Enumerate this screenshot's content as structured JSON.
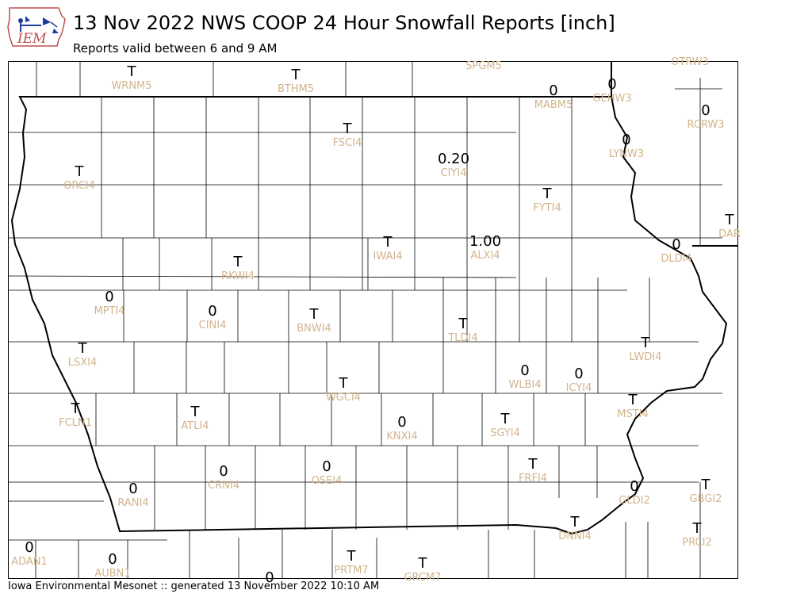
{
  "logo": {
    "text": "IEM"
  },
  "header": {
    "title": "13 Nov 2022 NWS COOP 24 Hour Snowfall Reports [inch]",
    "subtitle": "Reports valid between 6 and 9 AM"
  },
  "footer": "Iowa Environmental Mesonet :: generated 13 November 2022 10:10 AM",
  "colors": {
    "station_label": "#d2b48c",
    "value": "#000000",
    "border": "#000000"
  },
  "stations": [
    {
      "id": "WRNM5",
      "value": "T"
    },
    {
      "id": "BTHM5",
      "value": "T"
    },
    {
      "id": "SPGM5",
      "value": ""
    },
    {
      "id": "MABM5",
      "value": "0"
    },
    {
      "id": "GEHW3",
      "value": "0"
    },
    {
      "id": "OTRW3",
      "value": ""
    },
    {
      "id": "RCRW3",
      "value": "0"
    },
    {
      "id": "FSCI4",
      "value": "T"
    },
    {
      "id": "LYNW3",
      "value": "0"
    },
    {
      "id": "CIYI4",
      "value": "0.20"
    },
    {
      "id": "ORCI4",
      "value": "T"
    },
    {
      "id": "FYTI4",
      "value": "T"
    },
    {
      "id": "DAR",
      "value": "T"
    },
    {
      "id": "IWAI4",
      "value": "T"
    },
    {
      "id": "ALXI4",
      "value": "1.00"
    },
    {
      "id": "DLDI4",
      "value": "0"
    },
    {
      "id": "RKWI4",
      "value": "T"
    },
    {
      "id": "MPTI4",
      "value": "0"
    },
    {
      "id": "CINI4",
      "value": "0"
    },
    {
      "id": "BNWI4",
      "value": "T"
    },
    {
      "id": "TLDI4",
      "value": "T"
    },
    {
      "id": "LWDI4",
      "value": "T"
    },
    {
      "id": "LSXI4",
      "value": "T"
    },
    {
      "id": "WLBI4",
      "value": "0"
    },
    {
      "id": "ICYI4",
      "value": "0"
    },
    {
      "id": "WGCI4",
      "value": "T"
    },
    {
      "id": "MSTI4",
      "value": "T"
    },
    {
      "id": "FCLN1",
      "value": "T"
    },
    {
      "id": "ATLI4",
      "value": "T"
    },
    {
      "id": "KNXI4",
      "value": "0"
    },
    {
      "id": "SGYI4",
      "value": "T"
    },
    {
      "id": "CRNI4",
      "value": "0"
    },
    {
      "id": "OSEI4",
      "value": "0"
    },
    {
      "id": "FRFI4",
      "value": "T"
    },
    {
      "id": "RANI4",
      "value": "0"
    },
    {
      "id": "GBGI2",
      "value": "T"
    },
    {
      "id": "GLDI2",
      "value": "0"
    },
    {
      "id": "DNNI4",
      "value": "T"
    },
    {
      "id": "PRCI2",
      "value": "T"
    },
    {
      "id": "ADAN1",
      "value": "0"
    },
    {
      "id": "AUBN1",
      "value": "0"
    },
    {
      "id": "PRTM7",
      "value": "T"
    },
    {
      "id": "GRCM7",
      "value": "T"
    },
    {
      "id": "",
      "value": "0"
    }
  ]
}
